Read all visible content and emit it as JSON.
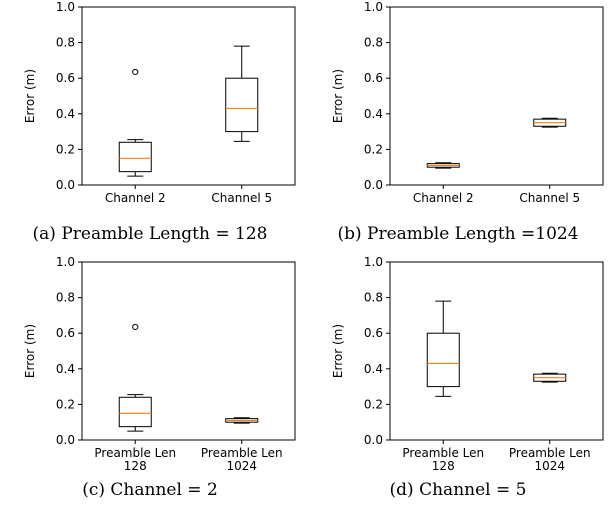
{
  "colors": {
    "median": "#ff7f0e",
    "box": "#000000",
    "background": "#ffffff"
  },
  "chart_data": [
    {
      "type": "box",
      "caption": "(a) Preamble Length = 128",
      "ylabel": "Error (m)",
      "ylim": [
        0,
        1.0
      ],
      "yticks": [
        "0.0",
        "0.2",
        "0.4",
        "0.6",
        "0.8",
        "1.0"
      ],
      "grid": false,
      "categories": [
        [
          "Channel 2"
        ],
        [
          "Channel 5"
        ]
      ],
      "boxes": [
        {
          "whislo": 0.05,
          "q1": 0.075,
          "med": 0.15,
          "q3": 0.24,
          "whishi": 0.255,
          "fliers": [
            0.635
          ]
        },
        {
          "whislo": 0.245,
          "q1": 0.3,
          "med": 0.43,
          "q3": 0.6,
          "whishi": 0.78,
          "fliers": []
        }
      ]
    },
    {
      "type": "box",
      "caption": "(b) Preamble Length =1024",
      "ylabel": "Error (m)",
      "ylim": [
        0,
        1.0
      ],
      "yticks": [
        "0.0",
        "0.2",
        "0.4",
        "0.6",
        "0.8",
        "1.0"
      ],
      "grid": false,
      "categories": [
        [
          "Channel 2"
        ],
        [
          "Channel 5"
        ]
      ],
      "boxes": [
        {
          "whislo": 0.095,
          "q1": 0.1,
          "med": 0.11,
          "q3": 0.12,
          "whishi": 0.125,
          "fliers": []
        },
        {
          "whislo": 0.325,
          "q1": 0.33,
          "med": 0.35,
          "q3": 0.37,
          "whishi": 0.375,
          "fliers": []
        }
      ]
    },
    {
      "type": "box",
      "caption": "(c) Channel = 2",
      "ylabel": "Error (m)",
      "ylim": [
        0,
        1.0
      ],
      "yticks": [
        "0.0",
        "0.2",
        "0.4",
        "0.6",
        "0.8",
        "1.0"
      ],
      "grid": false,
      "categories": [
        [
          "Preamble Len",
          "128"
        ],
        [
          "Preamble Len",
          "1024"
        ]
      ],
      "boxes": [
        {
          "whislo": 0.05,
          "q1": 0.075,
          "med": 0.15,
          "q3": 0.24,
          "whishi": 0.255,
          "fliers": [
            0.635
          ]
        },
        {
          "whislo": 0.095,
          "q1": 0.1,
          "med": 0.11,
          "q3": 0.12,
          "whishi": 0.125,
          "fliers": []
        }
      ]
    },
    {
      "type": "box",
      "caption": "(d) Channel = 5",
      "ylabel": "Error (m)",
      "ylim": [
        0,
        1.0
      ],
      "yticks": [
        "0.0",
        "0.2",
        "0.4",
        "0.6",
        "0.8",
        "1.0"
      ],
      "grid": false,
      "categories": [
        [
          "Preamble Len",
          "128"
        ],
        [
          "Preamble Len",
          "1024"
        ]
      ],
      "boxes": [
        {
          "whislo": 0.245,
          "q1": 0.3,
          "med": 0.43,
          "q3": 0.6,
          "whishi": 0.78,
          "fliers": []
        },
        {
          "whislo": 0.325,
          "q1": 0.33,
          "med": 0.35,
          "q3": 0.37,
          "whishi": 0.375,
          "fliers": []
        }
      ]
    }
  ]
}
